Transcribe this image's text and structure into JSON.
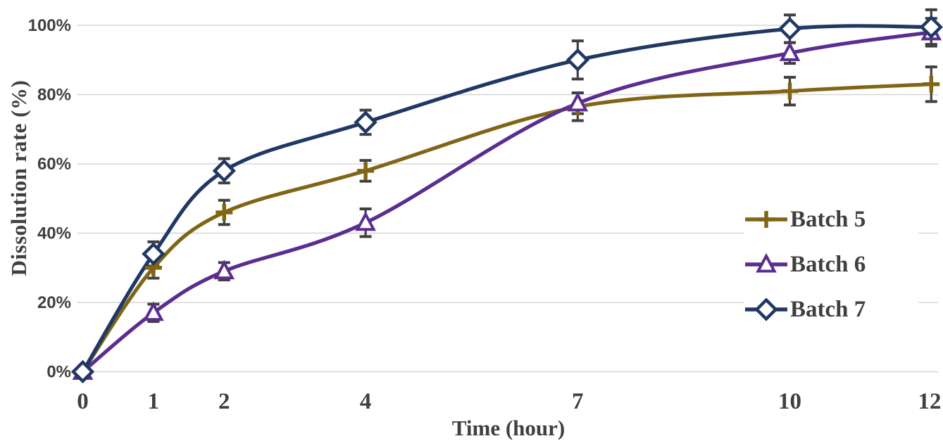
{
  "chart_data": {
    "type": "line",
    "title": "",
    "xlabel": "Time (hour)",
    "ylabel": "Dissolution rate (%)",
    "x": [
      0,
      1,
      2,
      4,
      7,
      10,
      12
    ],
    "xtick_labels": [
      "0",
      "1",
      "2",
      "4",
      "7",
      "10",
      "12"
    ],
    "ytick_labels": [
      "0%",
      "20%",
      "40%",
      "60%",
      "80%",
      "100%"
    ],
    "yticks": [
      0,
      20,
      40,
      60,
      80,
      100
    ],
    "xlim": [
      0,
      12
    ],
    "ylim": [
      0,
      100
    ],
    "grid": "horizontal",
    "legend_position": "right-inside",
    "series": [
      {
        "name": "Batch 5",
        "marker": "plus",
        "color": "#806515",
        "values": [
          0,
          30,
          46,
          58,
          76.5,
          81,
          83
        ],
        "errors": [
          0,
          3,
          3.5,
          3,
          4,
          4,
          5
        ]
      },
      {
        "name": "Batch 6",
        "marker": "triangle",
        "color": "#5C2D91",
        "values": [
          0,
          17,
          29,
          43,
          77.5,
          92,
          98
        ],
        "errors": [
          0,
          2.5,
          2.5,
          4,
          3,
          3,
          4
        ]
      },
      {
        "name": "Batch 7",
        "marker": "diamond",
        "color": "#1F3864",
        "values": [
          0,
          34,
          58,
          72,
          90,
          99,
          99.5
        ],
        "errors": [
          0,
          3.5,
          3.5,
          3.5,
          5.5,
          4,
          5
        ]
      }
    ],
    "colors": {
      "grid": "#D6D6D6",
      "error_bar": "#404040",
      "text": "#3F3F3F",
      "background": "#FFFFFF"
    }
  }
}
